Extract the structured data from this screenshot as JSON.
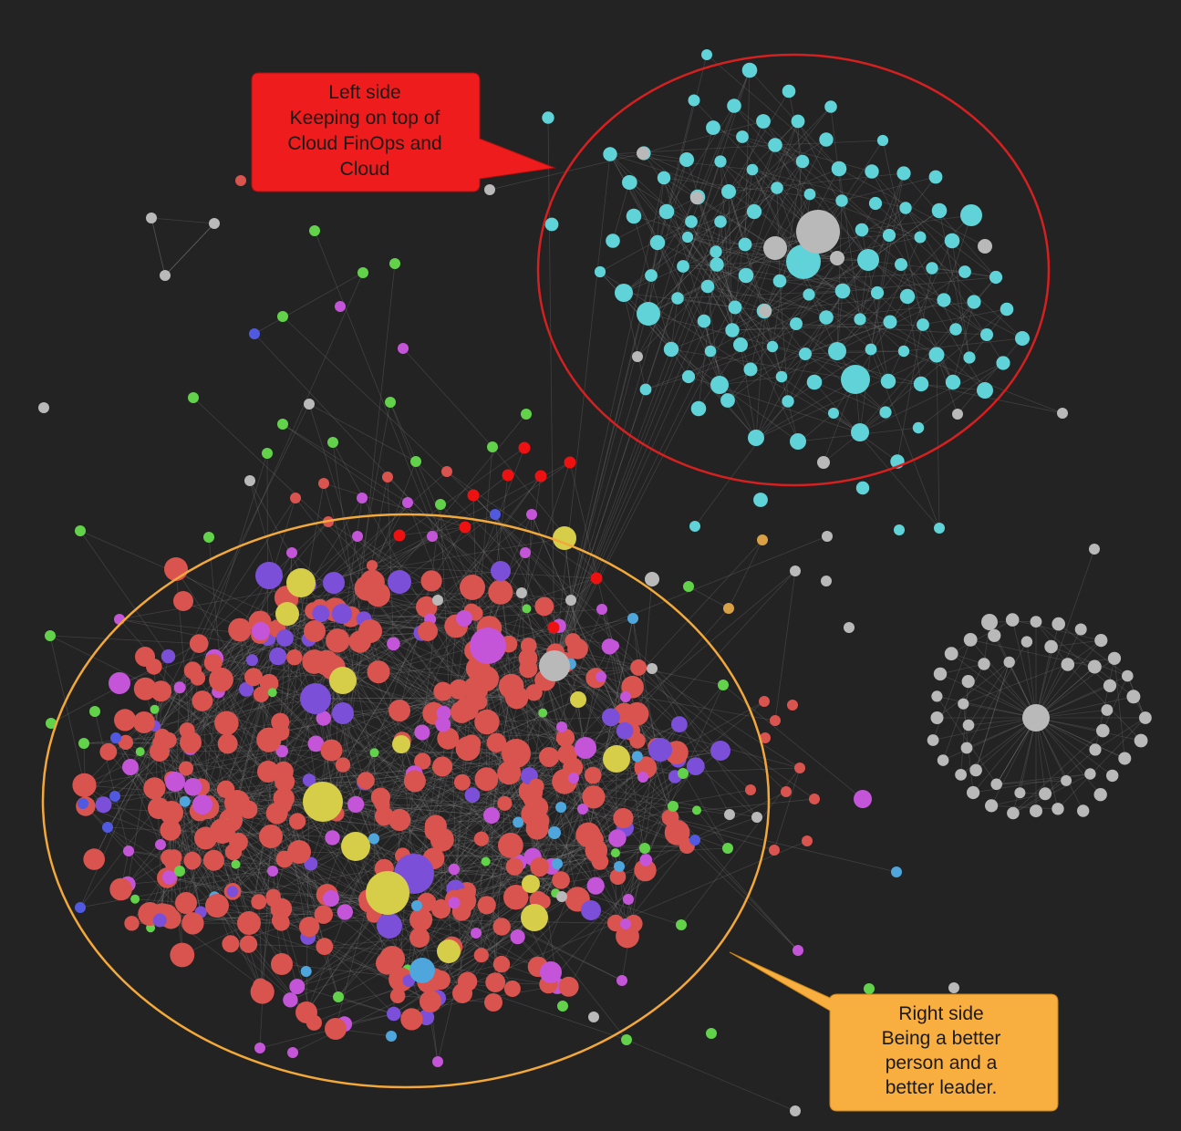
{
  "callouts": {
    "left": {
      "lines": [
        "Left side",
        "Keeping on top of",
        "Cloud FinOps and",
        "Cloud"
      ],
      "fill": "#ee1c1c",
      "text_color": "#1a1a1a",
      "ring_color": "#d42020"
    },
    "right": {
      "lines": [
        "Right side",
        "Being a better",
        "person and a",
        "better leader."
      ],
      "fill": "#f9ae40",
      "text_color": "#1a1a1a",
      "ring_color": "#f2a83a"
    }
  },
  "palette": {
    "background": "#232323",
    "edge": "#8a8a8a",
    "cyan": "#5fd3d8",
    "grey": "#b9b9b9",
    "coral": "#d9534f",
    "violet": "#7b4fd8",
    "magenta": "#c455d9",
    "yellow": "#d6cd48",
    "green": "#62d24a",
    "red": "#ee1111",
    "blue": "#5059e0",
    "lightblue": "#4ea6dc",
    "orange": "#d9a045"
  }
}
